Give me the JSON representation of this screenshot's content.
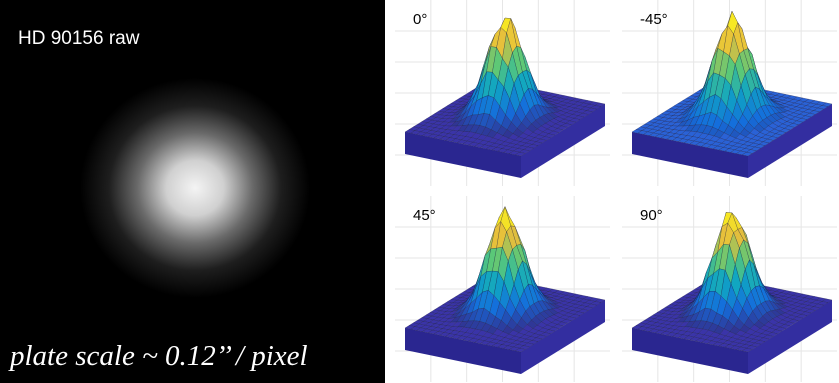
{
  "image_panel": {
    "title": "HD 90156 raw",
    "caption": "plate scale ~ 0.12’’ / pixel"
  },
  "surface_panels": [
    {
      "label": "0°"
    },
    {
      "label": "-45°"
    },
    {
      "label": "45°"
    },
    {
      "label": "90°"
    }
  ]
}
